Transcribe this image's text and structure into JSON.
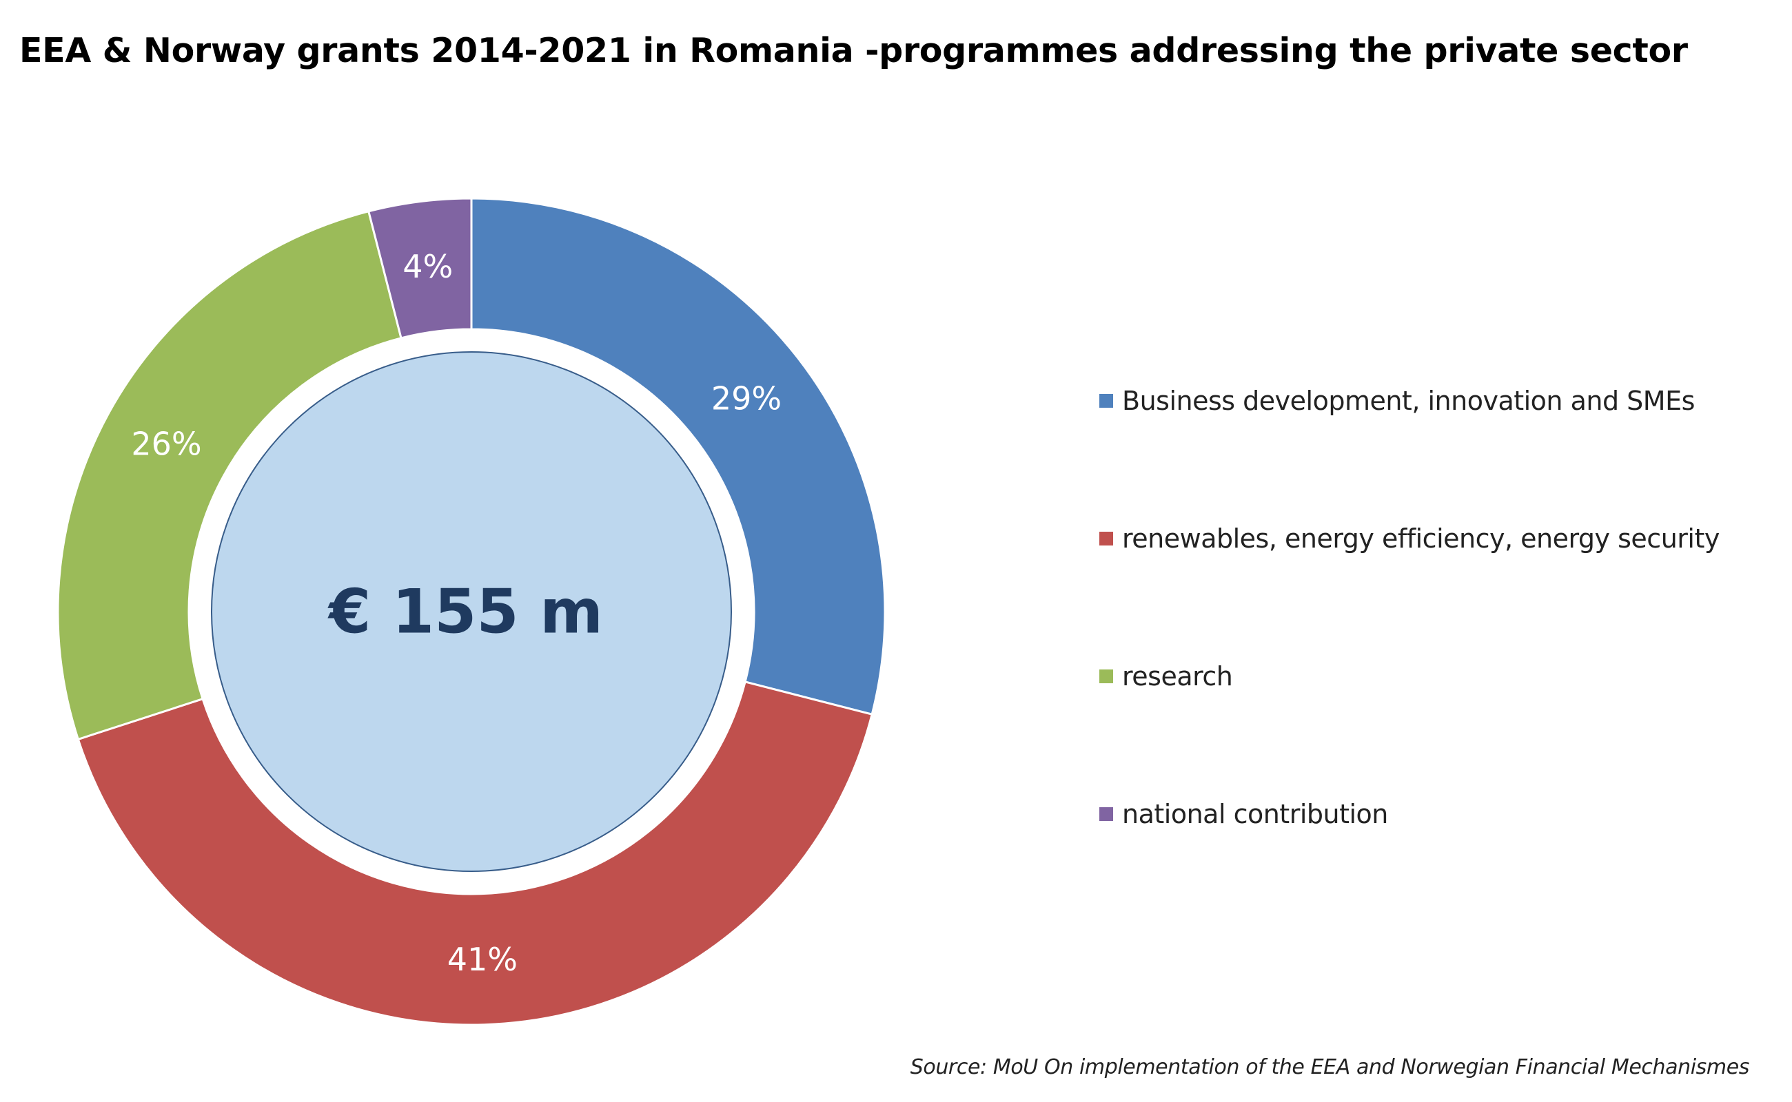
{
  "colors": {
    "business": "#4f81bd",
    "renewables": "#c0504d",
    "research": "#9bbb59",
    "national": "#8064a2",
    "center_fill": "#bdd7ee",
    "center_stroke": "#385d8a",
    "center_text": "#1f3a5f"
  },
  "chart_data": {
    "type": "pie",
    "title": "EEA & Norway grants 2014-2021 in Romania -programmes addressing the private sector",
    "center_label": "€ 155 m",
    "series": [
      {
        "name": "Business development, innovation and SMEs",
        "value": 29,
        "label": "29%",
        "color_key": "business"
      },
      {
        "name": "renewables, energy efficiency, energy security",
        "value": 41,
        "label": "41%",
        "color_key": "renewables"
      },
      {
        "name": "research",
        "value": 26,
        "label": "26%",
        "color_key": "research"
      },
      {
        "name": "national contribution",
        "value": 4,
        "label": "4%",
        "color_key": "national"
      }
    ],
    "legend_position": "right"
  },
  "source": "Source: MoU On implementation of the EEA and Norwegian Financial Mechanismes"
}
